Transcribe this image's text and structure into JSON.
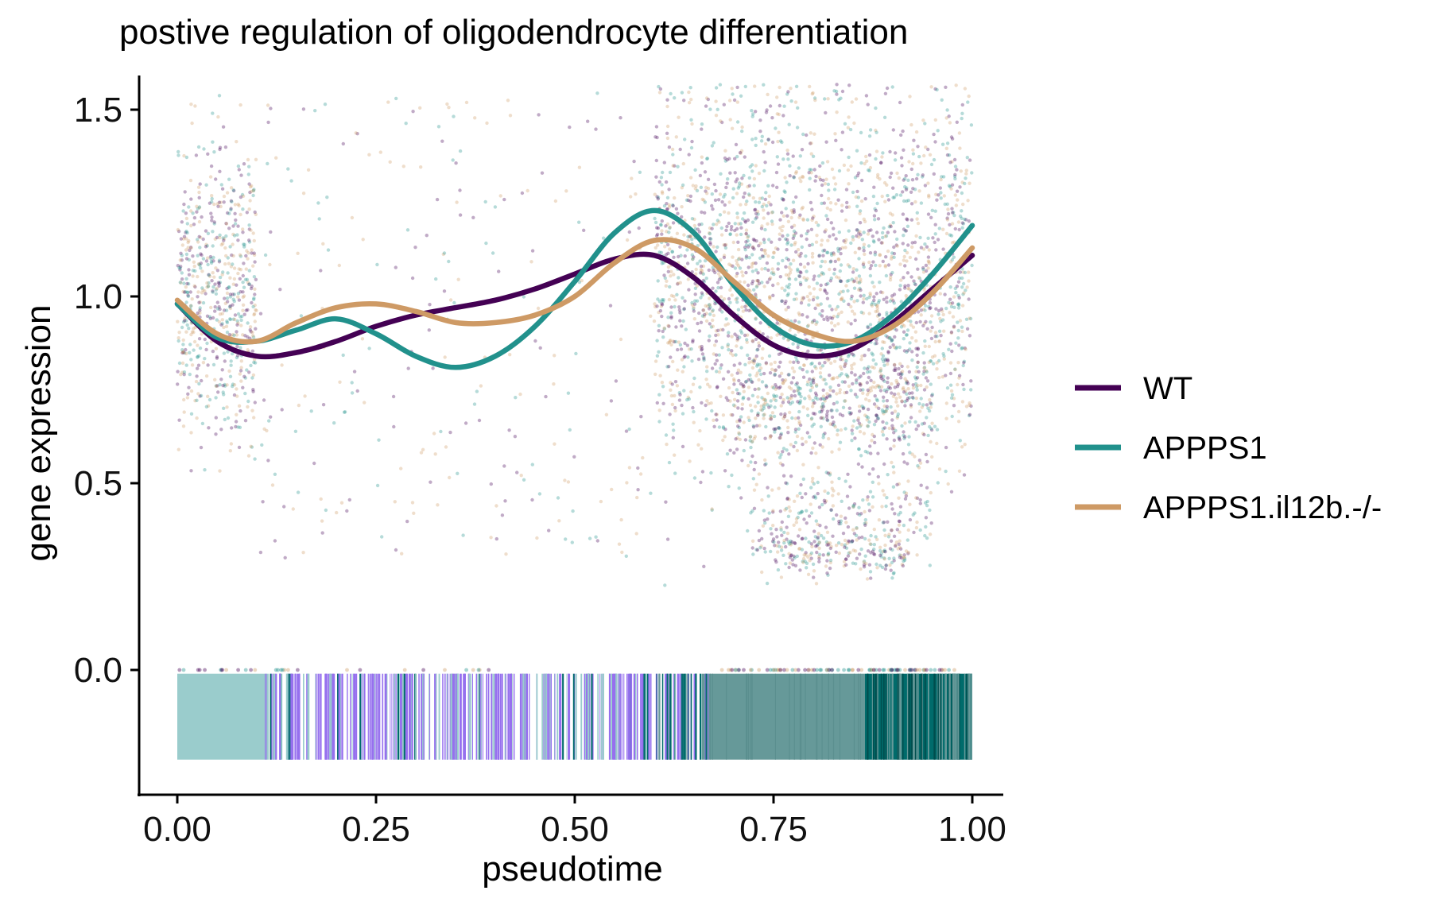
{
  "chart_data": {
    "type": "line",
    "title": "postive regulation of oligodendrocyte differentiation",
    "xlabel": "pseudotime",
    "ylabel": "gene expression",
    "xlim": [
      -0.05,
      1.05
    ],
    "ylim": [
      -0.33,
      1.58
    ],
    "x_ticks": [
      {
        "value": 0.0,
        "label": "0.00"
      },
      {
        "value": 0.25,
        "label": "0.25"
      },
      {
        "value": 0.5,
        "label": "0.50"
      },
      {
        "value": 0.75,
        "label": "0.75"
      },
      {
        "value": 1.0,
        "label": "1.00"
      }
    ],
    "y_ticks": [
      {
        "value": 0.0,
        "label": "0.0"
      },
      {
        "value": 0.5,
        "label": "0.5"
      },
      {
        "value": 1.0,
        "label": "1.0"
      },
      {
        "value": 1.5,
        "label": "1.5"
      }
    ],
    "grid": false,
    "legend_position": "right",
    "x": [
      0.0,
      0.05,
      0.1,
      0.15,
      0.2,
      0.25,
      0.3,
      0.35,
      0.4,
      0.45,
      0.5,
      0.55,
      0.6,
      0.65,
      0.7,
      0.75,
      0.8,
      0.85,
      0.9,
      0.95,
      1.0
    ],
    "series": [
      {
        "name": "WT",
        "color": "#440154",
        "values": [
          0.98,
          0.88,
          0.84,
          0.85,
          0.88,
          0.92,
          0.95,
          0.97,
          0.99,
          1.02,
          1.06,
          1.1,
          1.11,
          1.05,
          0.95,
          0.87,
          0.84,
          0.86,
          0.93,
          1.02,
          1.11
        ]
      },
      {
        "name": "APPPS1",
        "color": "#21918C",
        "values": [
          0.98,
          0.89,
          0.88,
          0.91,
          0.94,
          0.9,
          0.84,
          0.81,
          0.84,
          0.92,
          1.04,
          1.17,
          1.23,
          1.17,
          1.03,
          0.92,
          0.87,
          0.88,
          0.95,
          1.06,
          1.19
        ]
      },
      {
        "name": "APPPS1.il12b.-/-",
        "color": "#CE9A65",
        "values": [
          0.99,
          0.9,
          0.88,
          0.93,
          0.97,
          0.98,
          0.96,
          0.93,
          0.93,
          0.95,
          1.0,
          1.09,
          1.15,
          1.13,
          1.04,
          0.95,
          0.9,
          0.88,
          0.92,
          1.01,
          1.13
        ]
      }
    ],
    "scatter": {
      "description": "individual cell expression values for each genotype, semi-transparent",
      "clusters": [
        {
          "x_range": [
            0.0,
            0.1
          ],
          "y_center": 1.0,
          "y_spread": 0.35
        },
        {
          "x_range": [
            0.6,
            1.0
          ],
          "y_center": 1.05,
          "y_spread": 0.45
        },
        {
          "x_range": [
            0.7,
            0.95
          ],
          "y_center": 0.72,
          "y_spread": 0.15
        },
        {
          "x_range": [
            0.72,
            0.95
          ],
          "y_center": 0.4,
          "y_spread": 0.12
        },
        {
          "x_range": [
            0.75,
            0.92
          ],
          "y_center": 0.31,
          "y_spread": 0.05
        }
      ]
    },
    "rug": {
      "description": "pseudotime barcode of cell states below the axis",
      "colors": [
        "#9ACCCC",
        "#9670EE",
        "#669999",
        "#006B6B"
      ]
    }
  }
}
